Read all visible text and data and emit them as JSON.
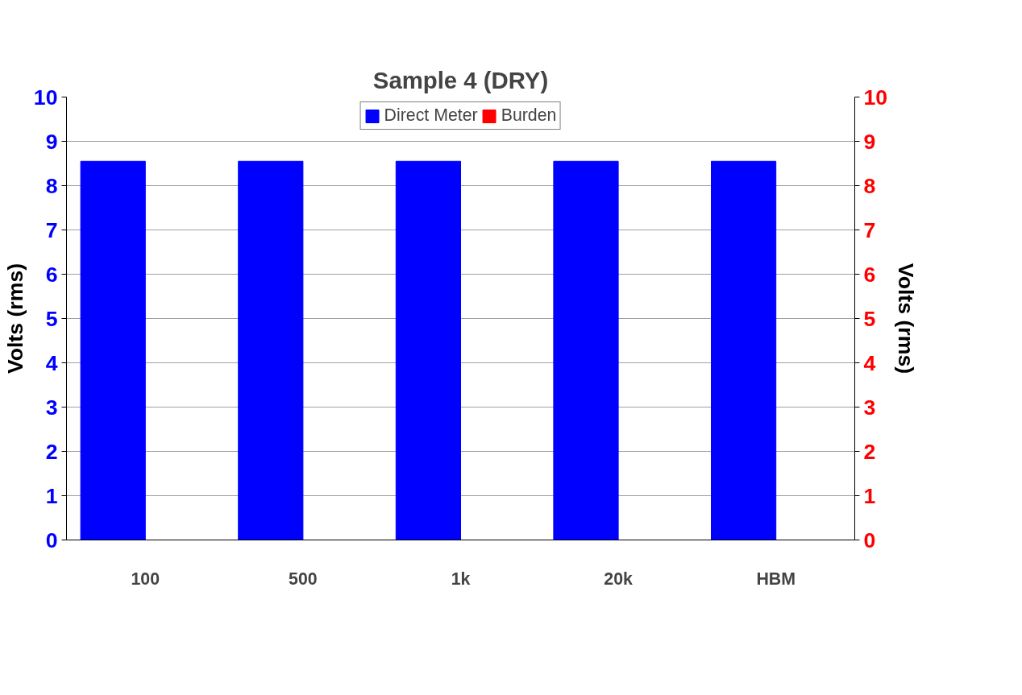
{
  "chart_data": {
    "type": "bar",
    "title": "Sample 4 (DRY)",
    "categories": [
      "100",
      "500",
      "1k",
      "20k",
      "HBM"
    ],
    "series": [
      {
        "name": "Direct Meter",
        "color": "#0000ff",
        "values": [
          8.55,
          8.55,
          8.55,
          8.55,
          8.55
        ]
      },
      {
        "name": "Burden",
        "color": "#ff0000",
        "values": [
          null,
          null,
          null,
          null,
          null
        ],
        "axis": "y2"
      }
    ],
    "ylabel": "Volts (rms)",
    "y2label": "Volts (rms)",
    "ylim": [
      0,
      10
    ],
    "yticks": [
      0,
      1,
      2,
      3,
      4,
      5,
      6,
      7,
      8,
      9,
      10
    ],
    "y2lim": [
      0,
      10
    ],
    "y2ticks": [
      0,
      1,
      2,
      3,
      4,
      5,
      6,
      7,
      8,
      9,
      10
    ],
    "grid": "y",
    "legend": "top"
  }
}
